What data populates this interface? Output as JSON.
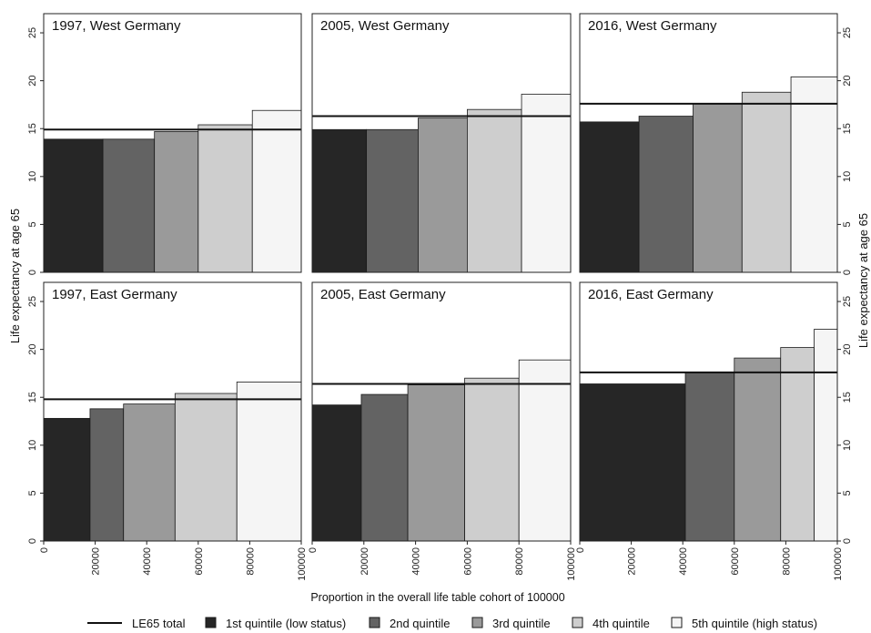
{
  "chart_data": {
    "type": "bar",
    "subtype": "variable-width bar (marimekko)",
    "layout": "2 rows x 3 columns of panels",
    "ylabel": "Life expectancy at age 65",
    "xlabel": "Proportion in the overall life table cohort of 100000",
    "ylim": [
      0,
      27
    ],
    "yticks": [
      0,
      5,
      10,
      15,
      20,
      25
    ],
    "xlim": [
      0,
      100000
    ],
    "xticks": [
      0,
      20000,
      40000,
      60000,
      80000,
      100000
    ],
    "xtick_labels": [
      "0",
      "20000",
      "40000",
      "60000",
      "80000",
      "100000"
    ],
    "grid": false,
    "legend_position": "bottom",
    "legend": {
      "total_line": "LE65 total",
      "quintiles": [
        "1st quintile (low status)",
        "2nd quintile",
        "3rd quintile",
        "4th quintile",
        "5th quintile (high status)"
      ]
    },
    "colors": {
      "q1": "#262626",
      "q2": "#636363",
      "q3": "#9a9a9a",
      "q4": "#cecece",
      "q5": "#f5f5f5",
      "total_line": "#111111"
    },
    "panels": [
      {
        "title": "1997, West Germany",
        "total": 14.9,
        "widths": [
          23000,
          20000,
          17000,
          21000,
          19000
        ],
        "values": [
          13.9,
          13.9,
          14.7,
          15.4,
          16.9
        ]
      },
      {
        "title": "2005, West Germany",
        "total": 16.3,
        "widths": [
          21000,
          20000,
          19000,
          21000,
          19000
        ],
        "values": [
          14.9,
          14.9,
          16.1,
          17.0,
          18.6
        ]
      },
      {
        "title": "2016, West Germany",
        "total": 17.6,
        "widths": [
          23000,
          21000,
          19000,
          19000,
          18000
        ],
        "values": [
          15.7,
          16.3,
          17.6,
          18.8,
          20.4
        ]
      },
      {
        "title": "1997, East Germany",
        "total": 14.8,
        "widths": [
          18000,
          13000,
          20000,
          24000,
          25000
        ],
        "values": [
          12.8,
          13.8,
          14.3,
          15.4,
          16.6
        ]
      },
      {
        "title": "2005, East Germany",
        "total": 16.4,
        "widths": [
          19000,
          18000,
          22000,
          21000,
          20000
        ],
        "values": [
          14.2,
          15.3,
          16.3,
          17.0,
          18.9
        ]
      },
      {
        "title": "2016, East Germany",
        "total": 17.6,
        "widths": [
          41000,
          19000,
          18000,
          13000,
          9000
        ],
        "values": [
          16.4,
          17.6,
          19.1,
          20.2,
          22.1
        ]
      }
    ]
  }
}
